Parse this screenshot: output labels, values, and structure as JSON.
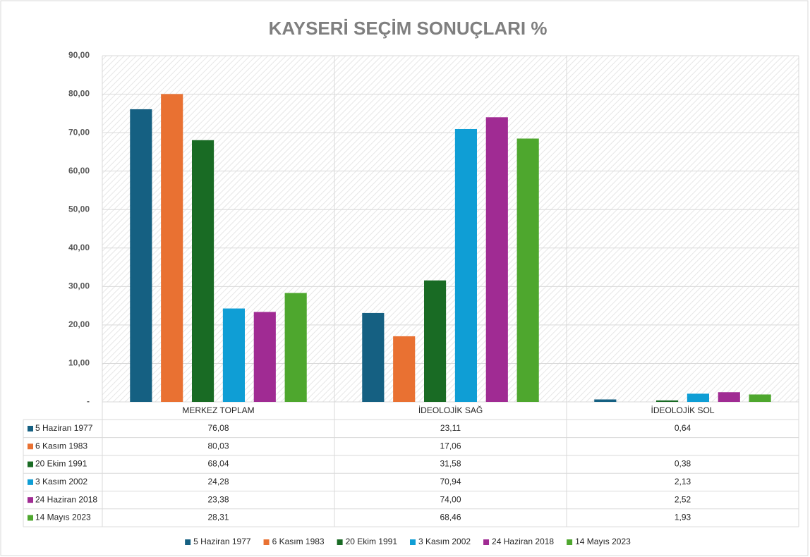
{
  "chart_data": {
    "type": "bar",
    "title": "KAYSERİ SEÇİM SONUÇLARI %",
    "categories": [
      "MERKEZ TOPLAM",
      "İDEOLOJİK SAĞ",
      "İDEOLOJİK SOL"
    ],
    "series": [
      {
        "name": "5 Haziran 1977",
        "color": "#156082",
        "values": [
          76.08,
          23.11,
          0.64
        ],
        "value_labels": [
          "76,08",
          "23,11",
          "0,64"
        ]
      },
      {
        "name": "6 Kasım 1983",
        "color": "#e97132",
        "values": [
          80.03,
          17.06,
          null
        ],
        "value_labels": [
          "80,03",
          "17,06",
          null
        ]
      },
      {
        "name": "20 Ekim 1991",
        "color": "#196b24",
        "values": [
          68.04,
          31.58,
          0.38
        ],
        "value_labels": [
          "68,04",
          "31,58",
          "0,38"
        ]
      },
      {
        "name": "3 Kasım 2002",
        "color": "#0f9ed5",
        "values": [
          24.28,
          70.94,
          2.13
        ],
        "value_labels": [
          "24,28",
          "70,94",
          "2,13"
        ]
      },
      {
        "name": "24 Haziran 2018",
        "color": "#a02b93",
        "values": [
          23.38,
          74.0,
          2.52
        ],
        "value_labels": [
          "23,38",
          "74,00",
          "2,52"
        ]
      },
      {
        "name": "14 Mayıs 2023",
        "color": "#4ea72e",
        "values": [
          28.31,
          68.46,
          1.93
        ],
        "value_labels": [
          "28,31",
          "68,46",
          "1,93"
        ]
      }
    ],
    "ylim": [
      0,
      90
    ],
    "yticks": [
      {
        "value": 0,
        "label": "-"
      },
      {
        "value": 10,
        "label": "10,00"
      },
      {
        "value": 20,
        "label": "20,00"
      },
      {
        "value": 30,
        "label": "30,00"
      },
      {
        "value": 40,
        "label": "40,00"
      },
      {
        "value": 50,
        "label": "50,00"
      },
      {
        "value": 60,
        "label": "60,00"
      },
      {
        "value": 70,
        "label": "70,00"
      },
      {
        "value": 80,
        "label": "80,00"
      },
      {
        "value": 90,
        "label": "90,00"
      }
    ],
    "grid": true
  }
}
